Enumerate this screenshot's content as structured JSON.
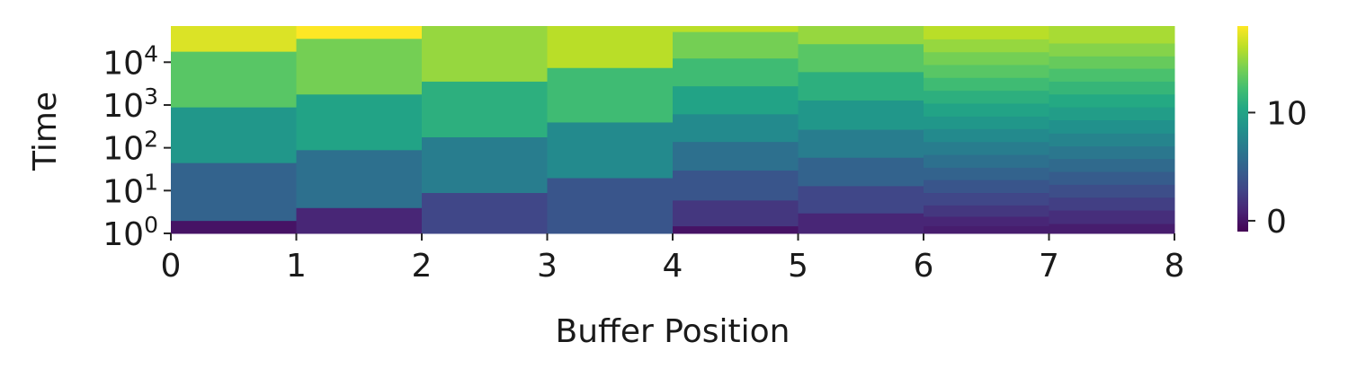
{
  "chart_data": {
    "type": "heatmap",
    "title": "",
    "xlabel": "Buffer Position",
    "ylabel": "Time",
    "x_ticks": [
      "0",
      "1",
      "2",
      "3",
      "4",
      "5",
      "6",
      "7",
      "8"
    ],
    "y_ticks": [
      {
        "base": "10",
        "exp": "0",
        "value": 1
      },
      {
        "base": "10",
        "exp": "1",
        "value": 10
      },
      {
        "base": "10",
        "exp": "2",
        "value": 100
      },
      {
        "base": "10",
        "exp": "3",
        "value": 1000
      },
      {
        "base": "10",
        "exp": "4",
        "value": 10000
      }
    ],
    "y_scale": "log",
    "ylim": [
      1,
      70000
    ],
    "colormap": "viridis",
    "colorbar": {
      "vmin": -1,
      "vmax": 18,
      "ticks": [
        {
          "label": "0",
          "value": 0
        },
        {
          "label": "10",
          "value": 10
        }
      ]
    },
    "columns": [
      {
        "x": [
          0,
          1
        ],
        "cells": [
          {
            "y0": 1,
            "y1": 2,
            "v": 0
          },
          {
            "y0": 2,
            "y1": 45,
            "v": 5
          },
          {
            "y0": 45,
            "y1": 900,
            "v": 9
          },
          {
            "y0": 900,
            "y1": 18000,
            "v": 13
          },
          {
            "y0": 18000,
            "y1": 70000,
            "v": 17
          }
        ]
      },
      {
        "x": [
          1,
          2
        ],
        "cells": [
          {
            "y0": 1,
            "y1": 4,
            "v": 1
          },
          {
            "y0": 4,
            "y1": 90,
            "v": 6
          },
          {
            "y0": 90,
            "y1": 1800,
            "v": 10
          },
          {
            "y0": 1800,
            "y1": 36000,
            "v": 14
          },
          {
            "y0": 36000,
            "y1": 70000,
            "v": 18
          }
        ]
      },
      {
        "x": [
          2,
          3
        ],
        "cells": [
          {
            "y0": 1,
            "y1": 9,
            "v": 3
          },
          {
            "y0": 9,
            "y1": 180,
            "v": 7
          },
          {
            "y0": 180,
            "y1": 3600,
            "v": 11
          },
          {
            "y0": 3600,
            "y1": 70000,
            "v": 15
          }
        ]
      },
      {
        "x": [
          3,
          4
        ],
        "cells": [
          {
            "y0": 1,
            "y1": 20,
            "v": 4
          },
          {
            "y0": 20,
            "y1": 400,
            "v": 8
          },
          {
            "y0": 400,
            "y1": 7500,
            "v": 12
          },
          {
            "y0": 7500,
            "y1": 70000,
            "v": 16
          }
        ]
      },
      {
        "x": [
          4,
          5
        ],
        "cells": [
          {
            "y0": 1,
            "y1": 1.5,
            "v": 0
          },
          {
            "y0": 1.5,
            "y1": 6,
            "v": 2
          },
          {
            "y0": 6,
            "y1": 30,
            "v": 4
          },
          {
            "y0": 30,
            "y1": 140,
            "v": 6
          },
          {
            "y0": 140,
            "y1": 620,
            "v": 8
          },
          {
            "y0": 620,
            "y1": 2800,
            "v": 10
          },
          {
            "y0": 2800,
            "y1": 12500,
            "v": 12
          },
          {
            "y0": 12500,
            "y1": 52000,
            "v": 14
          },
          {
            "y0": 52000,
            "y1": 70000,
            "v": 16
          }
        ]
      },
      {
        "x": [
          5,
          6
        ],
        "cells": [
          {
            "y0": 1,
            "y1": 3,
            "v": 1
          },
          {
            "y0": 3,
            "y1": 13,
            "v": 3
          },
          {
            "y0": 13,
            "y1": 60,
            "v": 5
          },
          {
            "y0": 60,
            "y1": 270,
            "v": 7
          },
          {
            "y0": 270,
            "y1": 1300,
            "v": 9
          },
          {
            "y0": 1300,
            "y1": 6000,
            "v": 11
          },
          {
            "y0": 6000,
            "y1": 27000,
            "v": 13
          },
          {
            "y0": 27000,
            "y1": 70000,
            "v": 15
          }
        ]
      },
      {
        "x": [
          6,
          7
        ],
        "cells": [
          {
            "y0": 1,
            "y1": 1.5,
            "v": 0.5
          },
          {
            "y0": 1.5,
            "y1": 2.5,
            "v": 1
          },
          {
            "y0": 2.5,
            "y1": 4.6,
            "v": 2
          },
          {
            "y0": 4.6,
            "y1": 9,
            "v": 3
          },
          {
            "y0": 9,
            "y1": 18,
            "v": 4
          },
          {
            "y0": 18,
            "y1": 35,
            "v": 5
          },
          {
            "y0": 35,
            "y1": 70,
            "v": 6
          },
          {
            "y0": 70,
            "y1": 140,
            "v": 7
          },
          {
            "y0": 140,
            "y1": 280,
            "v": 8
          },
          {
            "y0": 280,
            "y1": 550,
            "v": 9
          },
          {
            "y0": 550,
            "y1": 1100,
            "v": 10
          },
          {
            "y0": 1100,
            "y1": 2200,
            "v": 11
          },
          {
            "y0": 2200,
            "y1": 4400,
            "v": 12
          },
          {
            "y0": 4400,
            "y1": 8800,
            "v": 13
          },
          {
            "y0": 8800,
            "y1": 17500,
            "v": 14
          },
          {
            "y0": 17500,
            "y1": 35000,
            "v": 15
          },
          {
            "y0": 35000,
            "y1": 70000,
            "v": 16
          }
        ]
      },
      {
        "x": [
          7,
          8
        ],
        "cells": [
          {
            "y0": 1,
            "y1": 1.7,
            "v": 0.5
          },
          {
            "y0": 1.7,
            "y1": 3.5,
            "v": 1.5
          },
          {
            "y0": 3.5,
            "y1": 7,
            "v": 2.5
          },
          {
            "y0": 7,
            "y1": 14,
            "v": 3.5
          },
          {
            "y0": 14,
            "y1": 28,
            "v": 4.5
          },
          {
            "y0": 28,
            "y1": 56,
            "v": 5.5
          },
          {
            "y0": 56,
            "y1": 110,
            "v": 6.5
          },
          {
            "y0": 110,
            "y1": 220,
            "v": 7.5
          },
          {
            "y0": 220,
            "y1": 450,
            "v": 8.5
          },
          {
            "y0": 450,
            "y1": 900,
            "v": 9.5
          },
          {
            "y0": 900,
            "y1": 1800,
            "v": 10.5
          },
          {
            "y0": 1800,
            "y1": 3600,
            "v": 11.5
          },
          {
            "y0": 3600,
            "y1": 7200,
            "v": 12.5
          },
          {
            "y0": 7200,
            "y1": 14000,
            "v": 13.5
          },
          {
            "y0": 14000,
            "y1": 28000,
            "v": 14.5
          },
          {
            "y0": 28000,
            "y1": 70000,
            "v": 15.5
          }
        ]
      }
    ]
  }
}
